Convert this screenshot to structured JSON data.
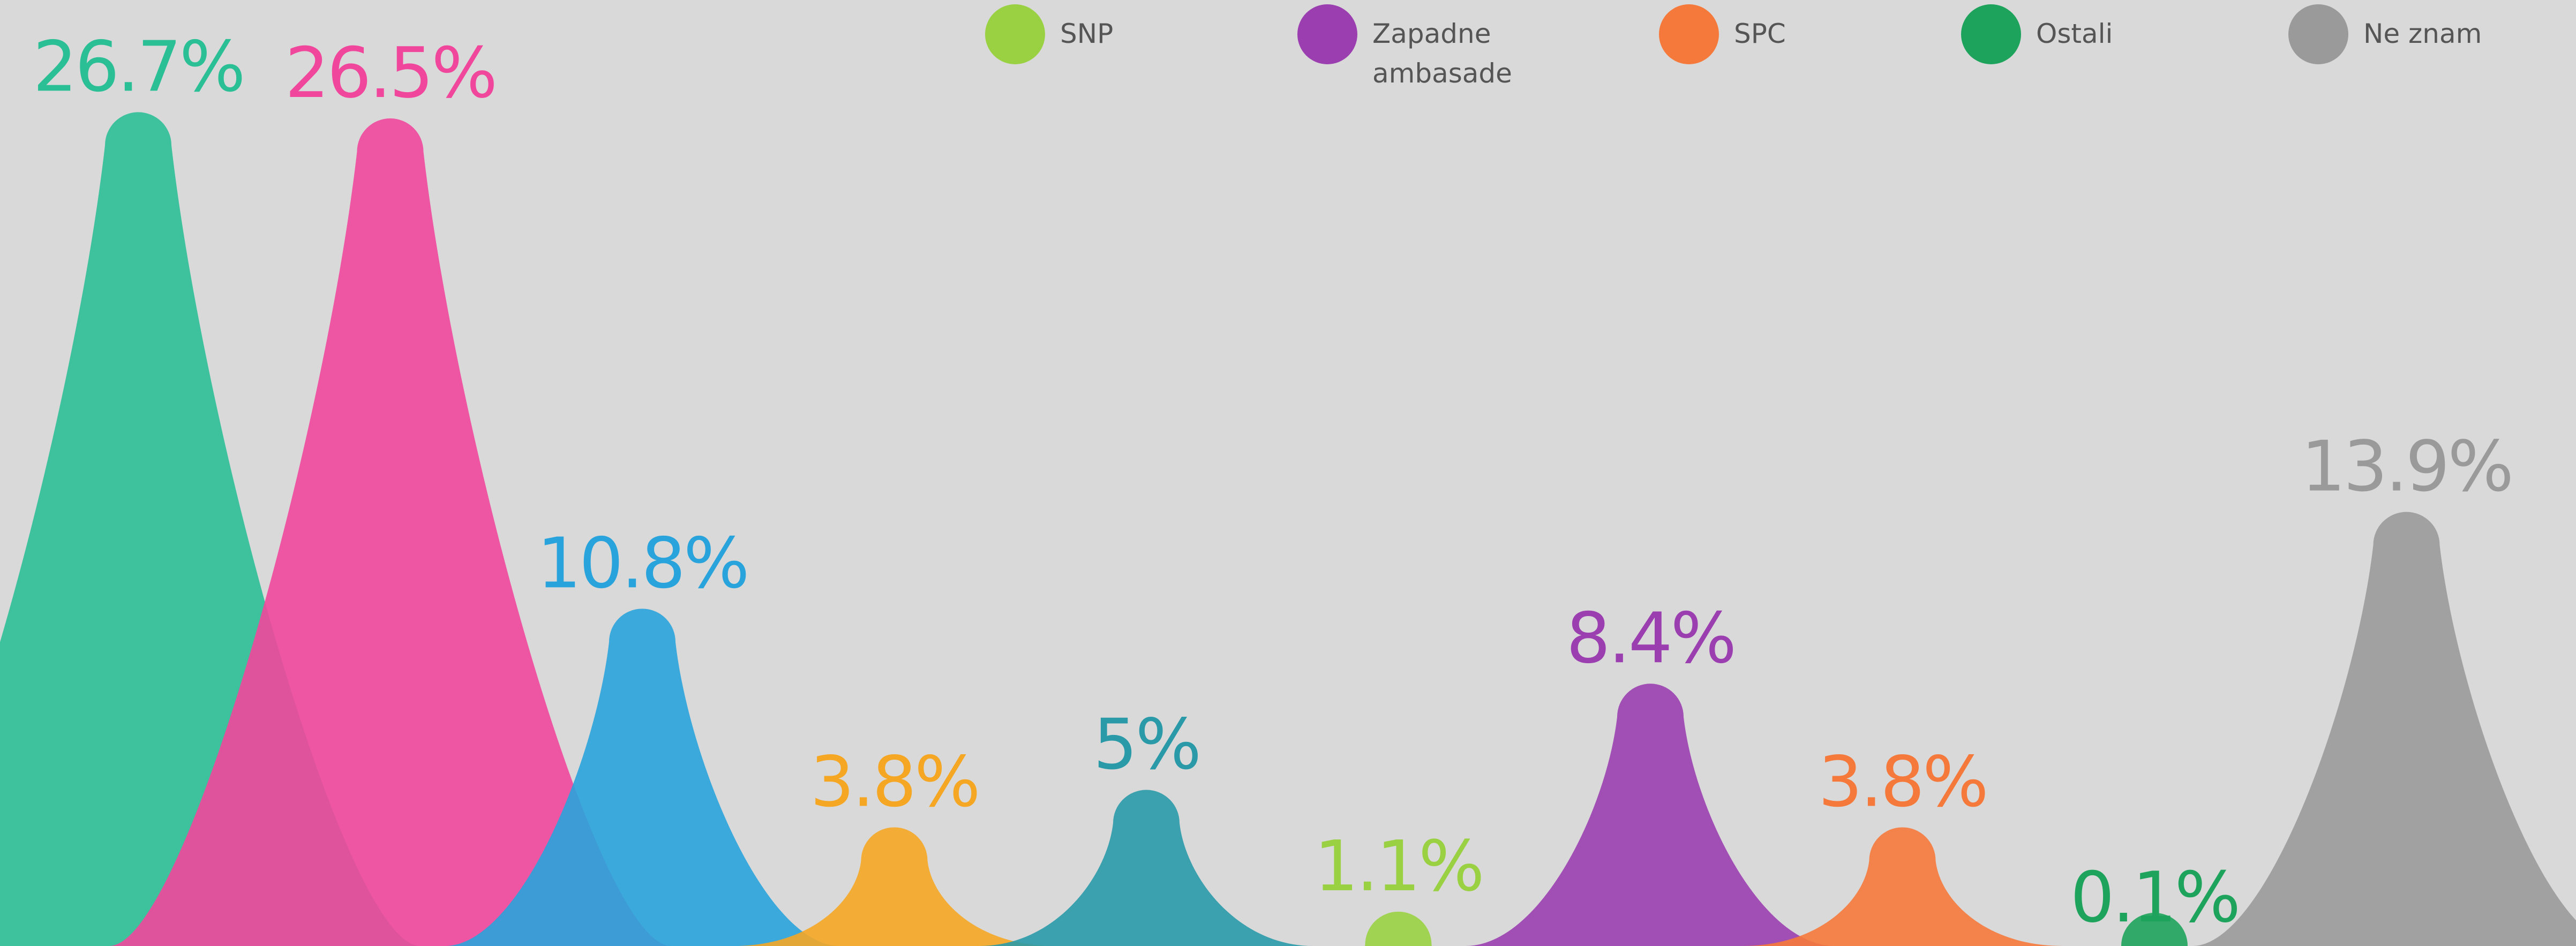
{
  "chart_data": {
    "type": "peak",
    "categories": [
      null,
      null,
      null,
      null,
      null,
      "SNP",
      "Zapadne ambasade",
      "SPC",
      "Ostali",
      "Ne znam"
    ],
    "values": [
      26.7,
      26.5,
      10.8,
      3.8,
      5,
      1.1,
      8.4,
      3.8,
      0.1,
      13.9
    ],
    "value_labels": [
      "26.7%",
      "26.5%",
      "10.8%",
      "3.8%",
      "5%",
      "1.1%",
      "8.4%",
      "3.8%",
      "0.1%",
      "13.9%"
    ],
    "colors": [
      "#2bbf96",
      "#f0479c",
      "#29a3dc",
      "#f5a623",
      "#2a9aa8",
      "#9ad142",
      "#9b3fb0",
      "#f5793a",
      "#1ea35c",
      "#9a9a9a"
    ],
    "ylim": [
      0,
      30
    ]
  }
}
